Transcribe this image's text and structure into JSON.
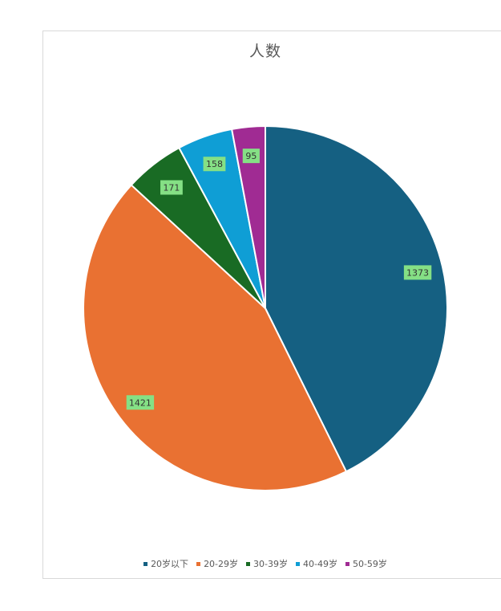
{
  "chart_data": {
    "type": "pie",
    "title": "人数",
    "categories": [
      "20岁以下",
      "20-29岁",
      "30-39岁",
      "40-49岁",
      "50-59岁"
    ],
    "values": [
      1373,
      1421,
      171,
      158,
      95
    ],
    "colors": [
      "#156082",
      "#e97132",
      "#196b24",
      "#0f9ed5",
      "#a02b93"
    ],
    "label_background": "#85e085",
    "legend_position": "bottom",
    "start_angle_deg": 0,
    "direction": "clockwise",
    "data_labels": true
  }
}
